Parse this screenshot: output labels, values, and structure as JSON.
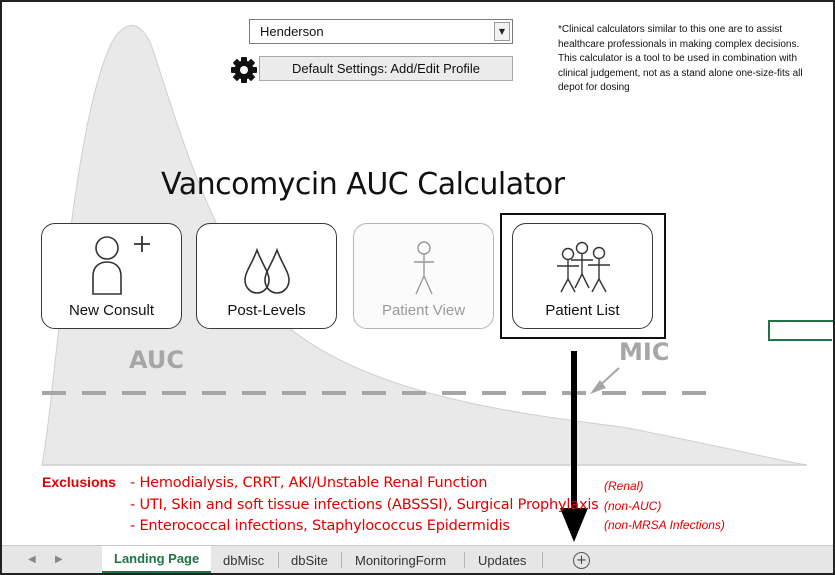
{
  "profile": {
    "selected": "Henderson"
  },
  "settings": {
    "button_label": "Default Settings: Add/Edit Profile"
  },
  "disclaimer": "*Clinical calculators similar to this one are to assist healthcare professionals in making complex decisions. This calculator is a tool to be used in combination with clinical judgement, not as a stand alone one-size-fits all depot for dosing",
  "title": "Vancomycin AUC Calculator",
  "tiles": [
    {
      "label": "New Consult",
      "icon": "person-add-icon",
      "enabled": true
    },
    {
      "label": "Post-Levels",
      "icon": "droplets-icon",
      "enabled": true
    },
    {
      "label": "Patient View",
      "icon": "stick-figure-icon",
      "enabled": false
    },
    {
      "label": "Patient List",
      "icon": "group-icon",
      "enabled": true,
      "focused": true
    }
  ],
  "curve_labels": {
    "auc": "AUC",
    "mic": "MIC"
  },
  "exclusions": {
    "title": "Exclusions",
    "items": [
      {
        "text": "- Hemodialysis, CRRT, AKI/Unstable Renal Function",
        "note": "(Renal)"
      },
      {
        "text": "- UTI, Skin and soft tissue infections (ABSSSI), Surgical Prophylaxis",
        "note": "(non-AUC)"
      },
      {
        "text": "- Enterococcal infections, Staphylococcus Epidermidis",
        "note": "(non-MRSA Infections)"
      }
    ]
  },
  "sheet_tabs": [
    "Landing Page",
    "dbMisc",
    "dbSite",
    "MonitoringForm",
    "Updates"
  ],
  "active_tab": "Landing Page",
  "colors": {
    "exclusion_red": "#e00000",
    "excel_green": "#217346",
    "curve_gray": "#e9e9e9"
  }
}
